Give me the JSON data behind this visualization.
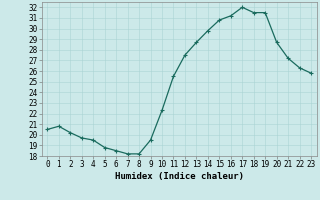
{
  "x": [
    0,
    1,
    2,
    3,
    4,
    5,
    6,
    7,
    8,
    9,
    10,
    11,
    12,
    13,
    14,
    15,
    16,
    17,
    18,
    19,
    20,
    21,
    22,
    23
  ],
  "y": [
    20.5,
    20.8,
    20.2,
    19.7,
    19.5,
    18.8,
    18.5,
    18.2,
    18.2,
    19.5,
    22.3,
    25.5,
    27.5,
    28.7,
    29.8,
    30.8,
    31.2,
    32.0,
    31.5,
    31.5,
    28.7,
    27.2,
    26.3,
    25.8
  ],
  "line_color": "#1a6b5e",
  "marker": "+",
  "marker_size": 3,
  "marker_linewidth": 0.8,
  "line_width": 0.9,
  "bg_color": "#cce9e9",
  "grid_color": "#aad4d4",
  "xlabel": "Humidex (Indice chaleur)",
  "xlim": [
    -0.5,
    23.5
  ],
  "ylim": [
    18,
    32.5
  ],
  "yticks": [
    18,
    19,
    20,
    21,
    22,
    23,
    24,
    25,
    26,
    27,
    28,
    29,
    30,
    31,
    32
  ],
  "xticks": [
    0,
    1,
    2,
    3,
    4,
    5,
    6,
    7,
    8,
    9,
    10,
    11,
    12,
    13,
    14,
    15,
    16,
    17,
    18,
    19,
    20,
    21,
    22,
    23
  ],
  "tick_fontsize": 5.5,
  "label_fontsize": 6.5
}
